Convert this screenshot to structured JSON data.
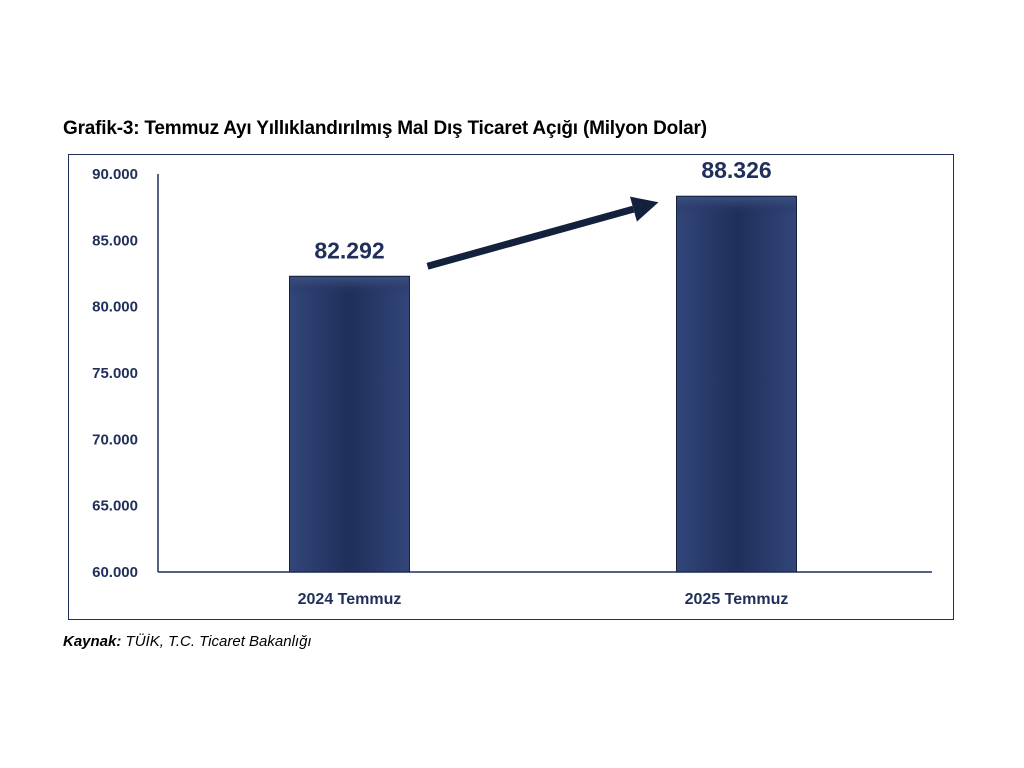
{
  "chart_data": {
    "type": "bar",
    "title": "Grafik-3: Temmuz Ayı Yıllıklandırılmış Mal Dış Ticaret Açığı (Milyon Dolar)",
    "categories": [
      "2024 Temmuz",
      "2025 Temmuz"
    ],
    "values": [
      82292,
      88326
    ],
    "data_labels": [
      "82.292",
      "88.326"
    ],
    "ylim": [
      60000,
      90000
    ],
    "yticks": [
      60000,
      65000,
      70000,
      75000,
      80000,
      85000,
      90000
    ],
    "ytick_labels": [
      "60.000",
      "65.000",
      "70.000",
      "75.000",
      "80.000",
      "85.000",
      "90.000"
    ],
    "xlabel": "",
    "ylabel": "",
    "grid": false,
    "legend": "none",
    "annotation": "arrow-between-bars",
    "colors": {
      "bar": "#1f2f5a",
      "bar_highlight": "#3c5180",
      "text": "#1f2f5a",
      "arrow": "#14213d"
    }
  },
  "source": {
    "label": "Kaynak:",
    "text": "TÜİK, T.C. Ticaret Bakanlığı"
  }
}
